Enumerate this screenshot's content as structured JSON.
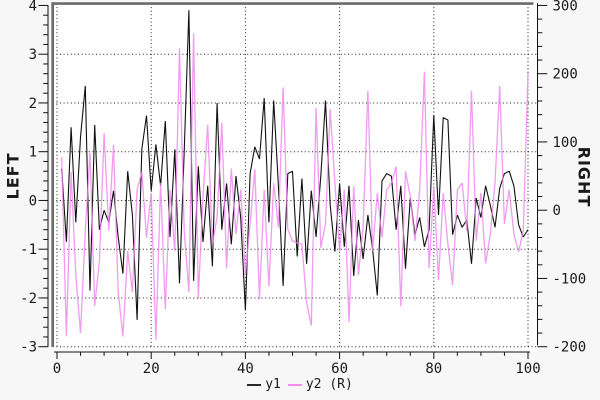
{
  "chart_data": {
    "type": "line",
    "title": "",
    "x_axis": {
      "min": 0,
      "max": 100,
      "major_ticks": [
        0,
        20,
        40,
        60,
        80,
        100
      ],
      "minor_step": 5
    },
    "left_axis": {
      "label": "LEFT",
      "min": -3,
      "max": 4,
      "major_ticks": [
        -3,
        -2,
        -1,
        0,
        1,
        2,
        3,
        4
      ],
      "minor_step": 0.2
    },
    "right_axis": {
      "label": "RIGHT",
      "min": -200,
      "max": 300,
      "major_ticks": [
        -200,
        -100,
        0,
        100,
        200,
        300
      ],
      "minor_step": 20
    },
    "grid": true,
    "legend_position": "bottom-center",
    "x_start": 1,
    "x_step": 1,
    "series": [
      {
        "name": "y1",
        "axis": "left",
        "color": "#111111",
        "values": [
          0.65,
          -0.85,
          1.5,
          -0.45,
          1.3,
          2.35,
          -1.85,
          1.55,
          -0.6,
          -0.2,
          -0.45,
          0.2,
          -0.75,
          -1.5,
          0.6,
          -0.3,
          -2.45,
          1.05,
          1.74,
          0.2,
          1.15,
          0.3,
          1.63,
          -0.75,
          1.05,
          -1.7,
          1.0,
          3.9,
          -1.65,
          0.7,
          -0.85,
          0.3,
          -1.35,
          2.0,
          -0.6,
          0.35,
          -0.9,
          0.5,
          -0.35,
          -2.25,
          0.55,
          1.1,
          0.85,
          2.1,
          -0.45,
          2.05,
          0.3,
          -1.75,
          0.55,
          0.6,
          -1.15,
          0.45,
          -1.3,
          0.2,
          -0.75,
          0.5,
          2.05,
          -0.1,
          -1.05,
          0.35,
          -0.95,
          0.3,
          -1.55,
          -0.4,
          -1.2,
          -0.3,
          -1.0,
          -1.95,
          0.4,
          0.55,
          0.5,
          -0.6,
          0.3,
          -1.4,
          0.05,
          -0.7,
          -0.35,
          -0.95,
          -0.6,
          1.75,
          -0.3,
          1.7,
          1.65,
          -0.7,
          -0.3,
          -0.55,
          -0.4,
          -1.3,
          0.05,
          -0.35,
          0.3,
          -0.1,
          -0.55,
          0.25,
          0.55,
          0.6,
          0.3,
          -0.5,
          -0.75,
          -0.6
        ]
      },
      {
        "name": "y2 (R)",
        "axis": "right",
        "color": "#ee82ee",
        "values": [
          78,
          -185,
          56,
          -95,
          -180,
          -30,
          84,
          -140,
          -75,
          113,
          -30,
          96,
          -120,
          -185,
          -60,
          -120,
          30,
          56,
          -40,
          25,
          -190,
          40,
          -145,
          30,
          -60,
          237,
          -30,
          -120,
          259,
          -130,
          20,
          125,
          -50,
          -10,
          128,
          -85,
          61,
          -35,
          30,
          -95,
          -20,
          60,
          -130,
          30,
          -112,
          40,
          -25,
          180,
          -28,
          -45,
          -48,
          -50,
          -135,
          -169,
          150,
          -55,
          -20,
          148,
          40,
          -60,
          30,
          -164,
          35,
          -95,
          -25,
          175,
          -60,
          25,
          -40,
          30,
          40,
          64,
          -141,
          57,
          20,
          -45,
          30,
          203,
          -85,
          35,
          -102,
          25,
          -50,
          -110,
          30,
          40,
          -30,
          175,
          -45,
          25,
          -78,
          -35,
          40,
          182,
          -20,
          30,
          -35,
          -61,
          -30,
          201
        ]
      }
    ]
  },
  "legend": {
    "items": [
      {
        "label": "y1"
      },
      {
        "label": "y2 (R)"
      }
    ]
  },
  "colors": {
    "background": "#f7f7f7",
    "plot_background": "#ffffff",
    "border": "#6a6a6a",
    "grid": "#1a1a1a",
    "tick": "#111111",
    "text": "#1a1a1a"
  }
}
